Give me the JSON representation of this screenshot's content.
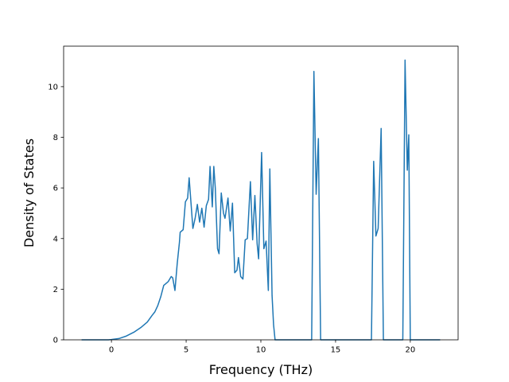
{
  "chart_data": {
    "type": "line",
    "title": "",
    "xlabel": "Frequency (THz)",
    "ylabel": "Density of States",
    "xlim": [
      -3.2,
      23.2
    ],
    "ylim": [
      0,
      11.6
    ],
    "xticks": [
      0,
      5,
      10,
      15,
      20
    ],
    "yticks": [
      0,
      2,
      4,
      6,
      8,
      10
    ],
    "grid": false,
    "legend": "none",
    "series": [
      {
        "color": "#1f77b4",
        "x": [
          -2.0,
          -0.2,
          0.0,
          0.5,
          1.0,
          1.5,
          2.0,
          2.4,
          2.7,
          2.9,
          3.1,
          3.3,
          3.5,
          3.6,
          3.8,
          3.9,
          4.0,
          4.1,
          4.25,
          4.4,
          4.55,
          4.6,
          4.8,
          4.95,
          5.1,
          5.2,
          5.3,
          5.45,
          5.6,
          5.75,
          5.9,
          6.05,
          6.2,
          6.35,
          6.5,
          6.6,
          6.75,
          6.85,
          6.95,
          7.1,
          7.2,
          7.35,
          7.5,
          7.6,
          7.8,
          7.95,
          8.1,
          8.25,
          8.4,
          8.5,
          8.65,
          8.8,
          8.95,
          9.1,
          9.3,
          9.45,
          9.6,
          9.75,
          9.85,
          10.05,
          10.2,
          10.35,
          10.5,
          10.6,
          10.75,
          10.85,
          10.95,
          11.1,
          11.3,
          11.5,
          11.6,
          13.4,
          13.55,
          13.7,
          13.85,
          14.0,
          14.2,
          14.35,
          17.4,
          17.55,
          17.7,
          17.85,
          18.05,
          18.2,
          18.35,
          19.5,
          19.65,
          19.8,
          19.9,
          20.0,
          20.1,
          22.0
        ],
        "values": [
          0,
          0,
          0.01,
          0.05,
          0.15,
          0.3,
          0.5,
          0.7,
          0.95,
          1.1,
          1.35,
          1.7,
          2.15,
          2.2,
          2.3,
          2.4,
          2.5,
          2.45,
          1.95,
          3.0,
          3.85,
          4.25,
          4.35,
          5.45,
          5.6,
          6.4,
          5.6,
          4.4,
          4.8,
          5.35,
          4.65,
          5.2,
          4.45,
          5.3,
          5.55,
          6.85,
          5.25,
          6.85,
          6.0,
          3.6,
          3.4,
          5.8,
          5.0,
          4.8,
          5.6,
          4.3,
          5.4,
          2.65,
          2.75,
          3.25,
          2.5,
          2.4,
          3.95,
          4.0,
          6.25,
          3.95,
          5.7,
          3.8,
          3.2,
          7.4,
          3.6,
          3.9,
          1.95,
          6.75,
          1.75,
          0.6,
          0,
          0,
          0,
          0,
          0,
          0,
          10.6,
          5.75,
          7.95,
          0,
          0,
          0,
          0,
          7.05,
          4.1,
          4.4,
          8.35,
          0,
          0,
          0,
          11.05,
          6.7,
          8.1,
          0,
          0,
          0
        ]
      }
    ]
  }
}
